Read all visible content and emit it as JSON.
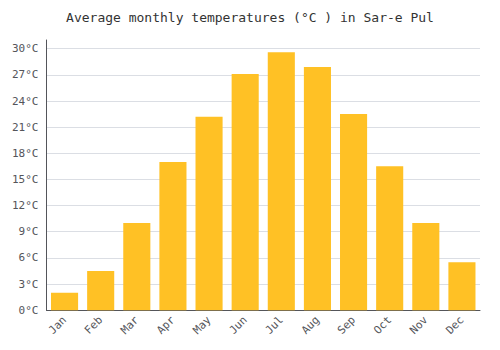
{
  "chart_data": {
    "type": "bar",
    "title": "Average monthly temperatures (°C ) in Sar-e Pul",
    "categories": [
      "Jan",
      "Feb",
      "Mar",
      "Apr",
      "May",
      "Jun",
      "Jul",
      "Aug",
      "Sep",
      "Oct",
      "Nov",
      "Dec"
    ],
    "values": [
      2.0,
      4.5,
      10.0,
      17.0,
      22.2,
      27.1,
      29.6,
      27.9,
      22.5,
      16.5,
      10.0,
      5.5
    ],
    "color": "#FFC125",
    "ylim": [
      0,
      31
    ],
    "yticks": [
      {
        "value": 0,
        "label": "0°C"
      },
      {
        "value": 3,
        "label": "3°C"
      },
      {
        "value": 6,
        "label": "6°C"
      },
      {
        "value": 9,
        "label": "9°C"
      },
      {
        "value": 12,
        "label": "12°C"
      },
      {
        "value": 15,
        "label": "15°C"
      },
      {
        "value": 18,
        "label": "18°C"
      },
      {
        "value": 21,
        "label": "21°C"
      },
      {
        "value": 24,
        "label": "24°C"
      },
      {
        "value": 27,
        "label": "27°C"
      },
      {
        "value": 30,
        "label": "30°C"
      }
    ],
    "grid": true
  }
}
